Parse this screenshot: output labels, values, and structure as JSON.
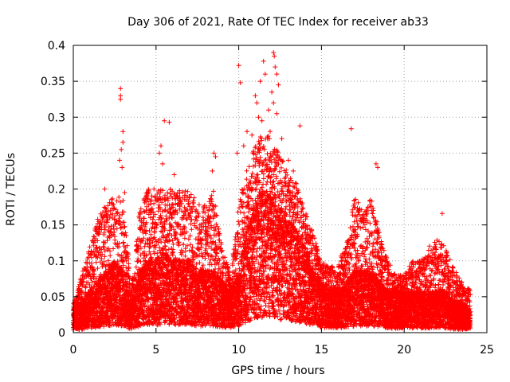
{
  "chart_data": {
    "type": "scatter",
    "title": "Day 306 of 2021, Rate Of TEC Index for receiver ab33",
    "xlabel": "GPS time / hours",
    "ylabel": "ROTI / TECUs",
    "xlim": [
      0,
      25
    ],
    "ylim": [
      0,
      0.4
    ],
    "xticks": [
      0,
      5,
      10,
      15,
      20,
      25
    ],
    "xtick_labels": [
      "0",
      "5",
      "10",
      "15",
      "20",
      "25"
    ],
    "yticks": [
      0,
      0.05,
      0.1,
      0.15,
      0.2,
      0.25,
      0.3,
      0.35,
      0.4
    ],
    "ytick_labels": [
      "0",
      "0.05",
      "0.1",
      "0.15",
      "0.2",
      "0.25",
      "0.3",
      "0.35",
      "0.4"
    ],
    "grid": true,
    "marker": "plus",
    "color": "#ff0000",
    "series": [
      {
        "points": [
          [
            2.85,
            0.34
          ],
          [
            2.85,
            0.33
          ],
          [
            2.85,
            0.325
          ],
          [
            3.0,
            0.28
          ],
          [
            2.9,
            0.255
          ],
          [
            3.0,
            0.265
          ],
          [
            2.8,
            0.24
          ],
          [
            2.95,
            0.23
          ],
          [
            3.1,
            0.195
          ],
          [
            1.9,
            0.2
          ],
          [
            5.3,
            0.26
          ],
          [
            5.2,
            0.25
          ],
          [
            5.4,
            0.235
          ],
          [
            5.5,
            0.295
          ],
          [
            5.8,
            0.293
          ],
          [
            6.1,
            0.22
          ],
          [
            8.5,
            0.25
          ],
          [
            8.6,
            0.245
          ],
          [
            8.4,
            0.225
          ],
          [
            10.0,
            0.372
          ],
          [
            10.1,
            0.348
          ],
          [
            11.5,
            0.378
          ],
          [
            11.6,
            0.36
          ],
          [
            11.3,
            0.35
          ],
          [
            11.0,
            0.33
          ],
          [
            11.1,
            0.32
          ],
          [
            11.8,
            0.31
          ],
          [
            12.1,
            0.39
          ],
          [
            12.15,
            0.385
          ],
          [
            12.2,
            0.37
          ],
          [
            12.3,
            0.36
          ],
          [
            12.0,
            0.335
          ],
          [
            12.1,
            0.32
          ],
          [
            12.4,
            0.345
          ],
          [
            12.3,
            0.305
          ],
          [
            13.7,
            0.288
          ],
          [
            16.8,
            0.284
          ],
          [
            18.3,
            0.235
          ],
          [
            18.4,
            0.23
          ],
          [
            22.3,
            0.166
          ],
          [
            11.2,
            0.3
          ],
          [
            11.4,
            0.295
          ],
          [
            10.8,
            0.275
          ],
          [
            12.6,
            0.27
          ],
          [
            11.9,
            0.28
          ],
          [
            13.0,
            0.24
          ],
          [
            13.3,
            0.225
          ],
          [
            10.5,
            0.28
          ],
          [
            10.3,
            0.26
          ],
          [
            9.9,
            0.25
          ]
        ]
      }
    ],
    "density_profile": {
      "hours": [
        0,
        0.5,
        1,
        1.5,
        2,
        2.5,
        3,
        3.5,
        4,
        4.5,
        5,
        5.5,
        6,
        6.5,
        7,
        7.5,
        8,
        8.5,
        9,
        9.5,
        10,
        10.5,
        11,
        11.5,
        12,
        12.5,
        13,
        13.5,
        14,
        14.5,
        15,
        15.5,
        16,
        16.5,
        17,
        17.5,
        18,
        18.5,
        19,
        19.5,
        20,
        20.5,
        21,
        21.5,
        22,
        22.5,
        23,
        23.5,
        24
      ],
      "typical": [
        0.02,
        0.03,
        0.04,
        0.05,
        0.06,
        0.07,
        0.06,
        0.03,
        0.06,
        0.07,
        0.07,
        0.08,
        0.07,
        0.07,
        0.07,
        0.06,
        0.06,
        0.06,
        0.05,
        0.04,
        0.06,
        0.1,
        0.13,
        0.14,
        0.13,
        0.12,
        0.11,
        0.1,
        0.08,
        0.06,
        0.05,
        0.04,
        0.04,
        0.05,
        0.06,
        0.06,
        0.06,
        0.05,
        0.04,
        0.04,
        0.04,
        0.04,
        0.04,
        0.04,
        0.04,
        0.04,
        0.03,
        0.03,
        0.02
      ],
      "envelope": [
        0.04,
        0.08,
        0.12,
        0.16,
        0.18,
        0.19,
        0.19,
        0.06,
        0.17,
        0.2,
        0.2,
        0.2,
        0.2,
        0.2,
        0.2,
        0.18,
        0.18,
        0.2,
        0.12,
        0.08,
        0.18,
        0.23,
        0.26,
        0.28,
        0.27,
        0.25,
        0.22,
        0.21,
        0.17,
        0.14,
        0.1,
        0.09,
        0.1,
        0.12,
        0.19,
        0.17,
        0.19,
        0.14,
        0.1,
        0.08,
        0.08,
        0.1,
        0.1,
        0.12,
        0.13,
        0.12,
        0.09,
        0.07,
        0.06
      ]
    },
    "sample_interval_hours": 0.005
  }
}
